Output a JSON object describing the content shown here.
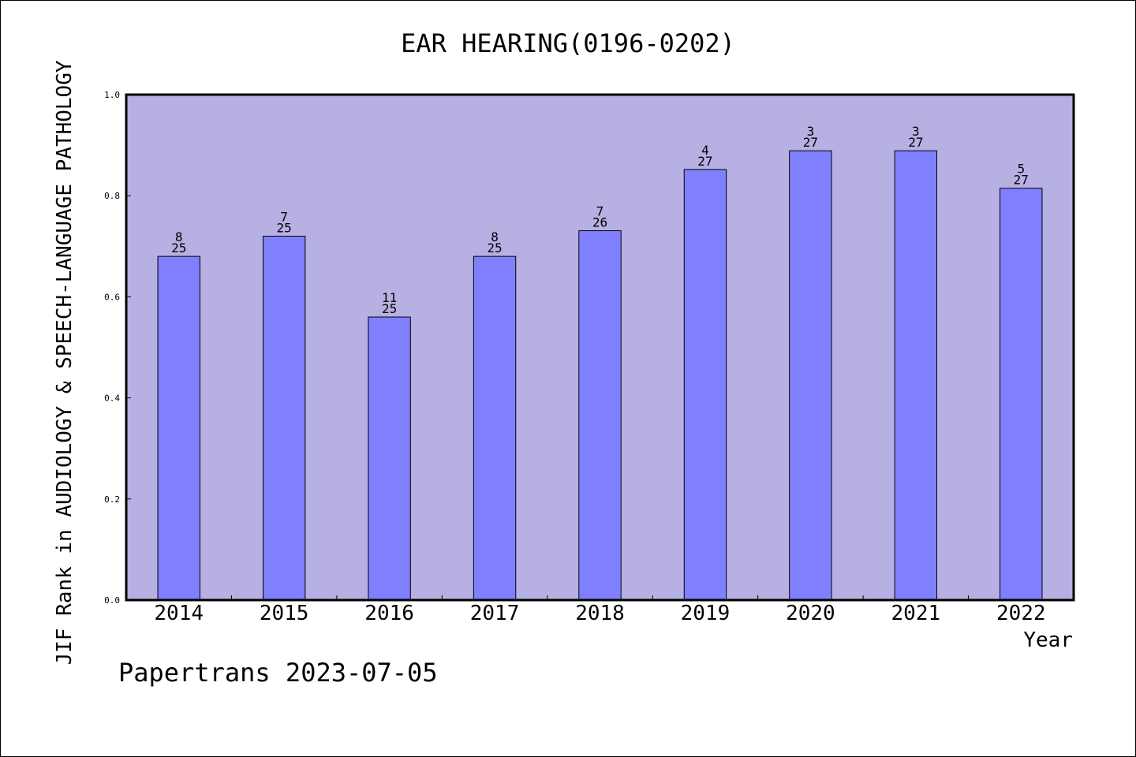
{
  "chart_data": {
    "type": "bar",
    "title": "EAR HEARING(0196-0202)",
    "xlabel": "Year",
    "ylabel": "JIF Rank in AUDIOLOGY & SPEECH-LANGUAGE PATHOLOGY",
    "ylim": [
      0,
      1.0
    ],
    "yticks": [
      "0.0",
      "0.2",
      "0.4",
      "0.6",
      "0.8",
      "1.0"
    ],
    "categories": [
      "2014",
      "2015",
      "2016",
      "2017",
      "2018",
      "2019",
      "2020",
      "2021",
      "2022"
    ],
    "values": [
      0.68,
      0.72,
      0.56,
      0.68,
      0.7308,
      0.8519,
      0.8889,
      0.8889,
      0.8148
    ],
    "rank": [
      "8",
      "7",
      "11",
      "8",
      "7",
      "4",
      "3",
      "3",
      "5"
    ],
    "total": [
      "25",
      "25",
      "25",
      "25",
      "26",
      "27",
      "27",
      "27",
      "27"
    ],
    "plot_background": "#b6b0e3",
    "bar_color": "#8080ff",
    "grid": false
  },
  "footer": "Papertrans 2023-07-05"
}
